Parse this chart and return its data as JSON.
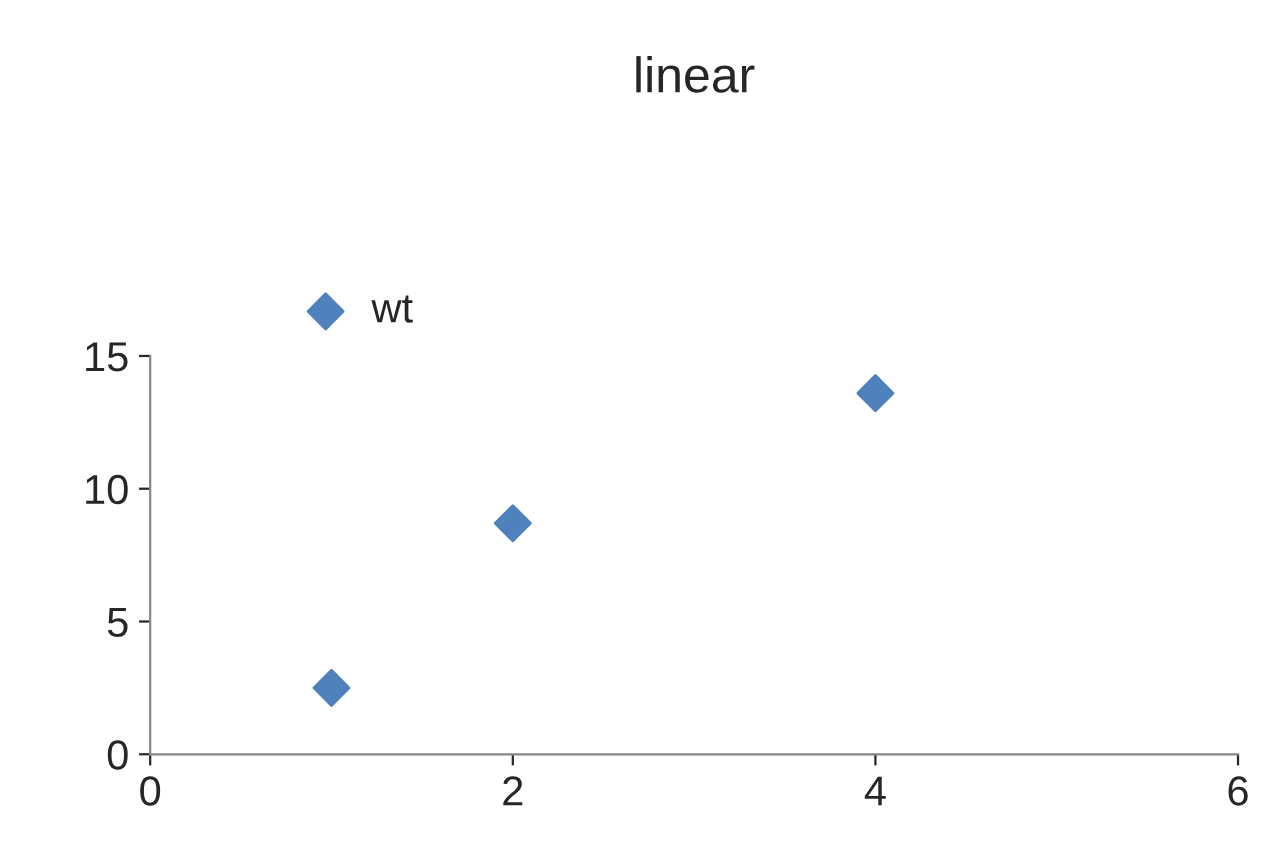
{
  "chart_data": {
    "type": "scatter",
    "title": "linear",
    "x": [
      1,
      2,
      4
    ],
    "series": [
      {
        "name": "wt",
        "color": "#4f81bd",
        "values": [
          2.5,
          8.7,
          13.6
        ]
      }
    ],
    "xlim": [
      0,
      6
    ],
    "xticks": [
      0,
      2,
      4,
      6
    ],
    "ylim": [
      0,
      15
    ],
    "yticks": [
      0,
      5,
      10,
      15
    ],
    "marker": "diamond",
    "grid": false,
    "legend": "top left"
  }
}
